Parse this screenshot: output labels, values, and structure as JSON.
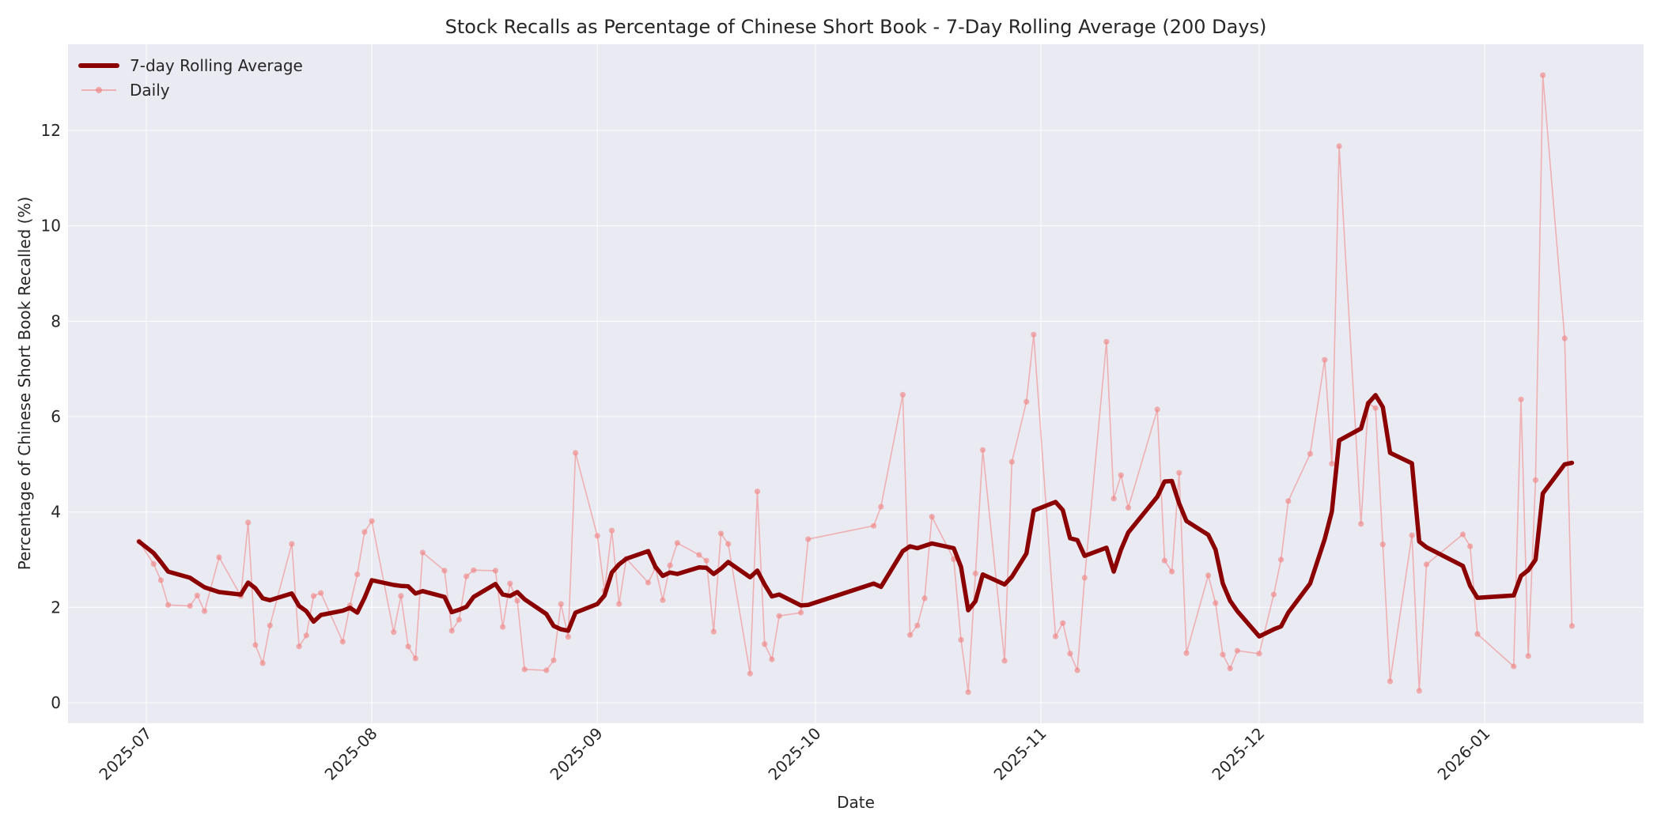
{
  "chart_data": {
    "type": "line",
    "title": "Stock Recalls as Percentage of Chinese Short Book - 7-Day Rolling Average (200 Days)",
    "xlabel": "Date",
    "ylabel": "Percentage of Chinese Short Book Recalled (%)",
    "ylim": [
      -0.43,
      13.8
    ],
    "xlim": [
      "2025-06-20",
      "2026-01-22"
    ],
    "grid": true,
    "legend_position": "upper left",
    "x_ticks": [
      "2025-07",
      "2025-08",
      "2025-09",
      "2025-10",
      "2025-11",
      "2025-12",
      "2026-01"
    ],
    "y_ticks": [
      0,
      2,
      4,
      6,
      8,
      10,
      12
    ],
    "x": [
      "2025-06-30",
      "2025-07-02",
      "2025-07-03",
      "2025-07-04",
      "2025-07-07",
      "2025-07-08",
      "2025-07-09",
      "2025-07-11",
      "2025-07-14",
      "2025-07-15",
      "2025-07-16",
      "2025-07-17",
      "2025-07-18",
      "2025-07-21",
      "2025-07-22",
      "2025-07-23",
      "2025-07-24",
      "2025-07-25",
      "2025-07-28",
      "2025-07-29",
      "2025-07-30",
      "2025-07-31",
      "2025-08-01",
      "2025-08-04",
      "2025-08-05",
      "2025-08-06",
      "2025-08-07",
      "2025-08-08",
      "2025-08-11",
      "2025-08-12",
      "2025-08-13",
      "2025-08-14",
      "2025-08-15",
      "2025-08-18",
      "2025-08-19",
      "2025-08-20",
      "2025-08-21",
      "2025-08-22",
      "2025-08-25",
      "2025-08-26",
      "2025-08-27",
      "2025-08-28",
      "2025-08-29",
      "2025-09-01",
      "2025-09-02",
      "2025-09-03",
      "2025-09-04",
      "2025-09-05",
      "2025-09-08",
      "2025-09-09",
      "2025-09-10",
      "2025-09-11",
      "2025-09-12",
      "2025-09-15",
      "2025-09-16",
      "2025-09-17",
      "2025-09-18",
      "2025-09-19",
      "2025-09-22",
      "2025-09-23",
      "2025-09-24",
      "2025-09-25",
      "2025-09-26",
      "2025-09-29",
      "2025-09-30",
      "2025-10-09",
      "2025-10-10",
      "2025-10-13",
      "2025-10-14",
      "2025-10-15",
      "2025-10-16",
      "2025-10-17",
      "2025-10-20",
      "2025-10-21",
      "2025-10-22",
      "2025-10-23",
      "2025-10-24",
      "2025-10-27",
      "2025-10-28",
      "2025-10-30",
      "2025-10-31",
      "2025-11-03",
      "2025-11-04",
      "2025-11-05",
      "2025-11-06",
      "2025-11-07",
      "2025-11-10",
      "2025-11-11",
      "2025-11-12",
      "2025-11-13",
      "2025-11-17",
      "2025-11-18",
      "2025-11-19",
      "2025-11-20",
      "2025-11-21",
      "2025-11-24",
      "2025-11-25",
      "2025-11-26",
      "2025-11-27",
      "2025-11-28",
      "2025-12-01",
      "2025-12-03",
      "2025-12-04",
      "2025-12-05",
      "2025-12-08",
      "2025-12-10",
      "2025-12-11",
      "2025-12-12",
      "2025-12-15",
      "2025-12-16",
      "2025-12-17",
      "2025-12-18",
      "2025-12-19",
      "2025-12-22",
      "2025-12-23",
      "2025-12-24",
      "2025-12-29",
      "2025-12-30",
      "2025-12-31",
      "2026-01-05",
      "2026-01-06",
      "2026-01-07",
      "2026-01-08",
      "2026-01-09",
      "2026-01-12",
      "2026-01-13"
    ],
    "series": [
      {
        "name": "7-day Rolling Average",
        "color": "#8b0000",
        "style": "thick-line",
        "values": [
          3.38,
          3.14,
          2.95,
          2.75,
          2.62,
          2.52,
          2.42,
          2.32,
          2.27,
          2.52,
          2.4,
          2.19,
          2.15,
          2.29,
          2.03,
          1.92,
          1.7,
          1.84,
          1.93,
          1.99,
          1.89,
          2.2,
          2.57,
          2.47,
          2.45,
          2.44,
          2.29,
          2.34,
          2.22,
          1.9,
          1.95,
          2.01,
          2.22,
          2.49,
          2.27,
          2.24,
          2.32,
          2.17,
          1.86,
          1.61,
          1.54,
          1.51,
          1.89,
          2.07,
          2.25,
          2.73,
          2.9,
          3.02,
          3.18,
          2.85,
          2.66,
          2.73,
          2.7,
          2.84,
          2.83,
          2.7,
          2.81,
          2.95,
          2.63,
          2.77,
          2.48,
          2.23,
          2.27,
          2.04,
          2.05,
          2.5,
          2.43,
          3.18,
          3.28,
          3.24,
          3.29,
          3.34,
          3.24,
          2.85,
          1.94,
          2.13,
          2.69,
          2.48,
          2.64,
          3.13,
          4.03,
          4.21,
          4.04,
          3.45,
          3.41,
          3.08,
          3.25,
          2.75,
          3.21,
          3.57,
          4.32,
          4.64,
          4.65,
          4.18,
          3.81,
          3.52,
          3.21,
          2.5,
          2.14,
          1.92,
          1.39,
          1.54,
          1.6,
          1.89,
          2.5,
          3.43,
          4.01,
          5.5,
          5.75,
          6.28,
          6.45,
          6.2,
          5.24,
          5.02,
          3.38,
          3.26,
          2.87,
          2.45,
          2.2,
          2.25,
          2.66,
          2.78,
          3.0,
          4.39,
          5.0,
          5.03
        ]
      },
      {
        "name": "Daily",
        "color": "#f08080",
        "style": "line-with-markers",
        "values": [
          3.38,
          2.91,
          2.57,
          2.05,
          2.03,
          2.25,
          1.92,
          3.05,
          2.24,
          3.78,
          1.21,
          0.83,
          1.62,
          3.33,
          1.18,
          1.41,
          2.24,
          2.3,
          1.28,
          2.04,
          2.69,
          3.58,
          3.81,
          1.48,
          2.24,
          1.18,
          0.93,
          3.15,
          2.77,
          1.51,
          1.74,
          2.65,
          2.78,
          2.77,
          1.59,
          2.5,
          2.14,
          0.7,
          0.68,
          0.89,
          2.07,
          1.38,
          5.24,
          3.5,
          2.35,
          3.61,
          2.07,
          3.02,
          2.52,
          2.83,
          2.15,
          2.88,
          3.35,
          3.1,
          2.98,
          1.49,
          3.55,
          3.33,
          0.61,
          4.43,
          1.23,
          0.91,
          1.82,
          1.89,
          3.43,
          3.71,
          4.11,
          6.46,
          1.42,
          1.62,
          2.19,
          3.9,
          3.01,
          1.32,
          0.22,
          2.71,
          5.3,
          0.88,
          5.05,
          6.31,
          7.72,
          1.39,
          1.67,
          1.03,
          0.68,
          2.62,
          7.57,
          4.28,
          4.77,
          4.09,
          6.15,
          2.98,
          2.75,
          4.82,
          1.04,
          2.67,
          2.09,
          1.01,
          0.72,
          1.09,
          1.03,
          2.27,
          3.0,
          4.23,
          5.22,
          7.19,
          5.01,
          11.67,
          3.75,
          6.28,
          6.18,
          3.32,
          0.45,
          3.51,
          0.25,
          2.9,
          3.53,
          3.28,
          1.44,
          0.76,
          6.36,
          0.98,
          4.67,
          13.16,
          7.64,
          1.61
        ]
      }
    ]
  },
  "legend": {
    "items": [
      {
        "label": "7-day Rolling Average"
      },
      {
        "label": "Daily"
      }
    ]
  }
}
